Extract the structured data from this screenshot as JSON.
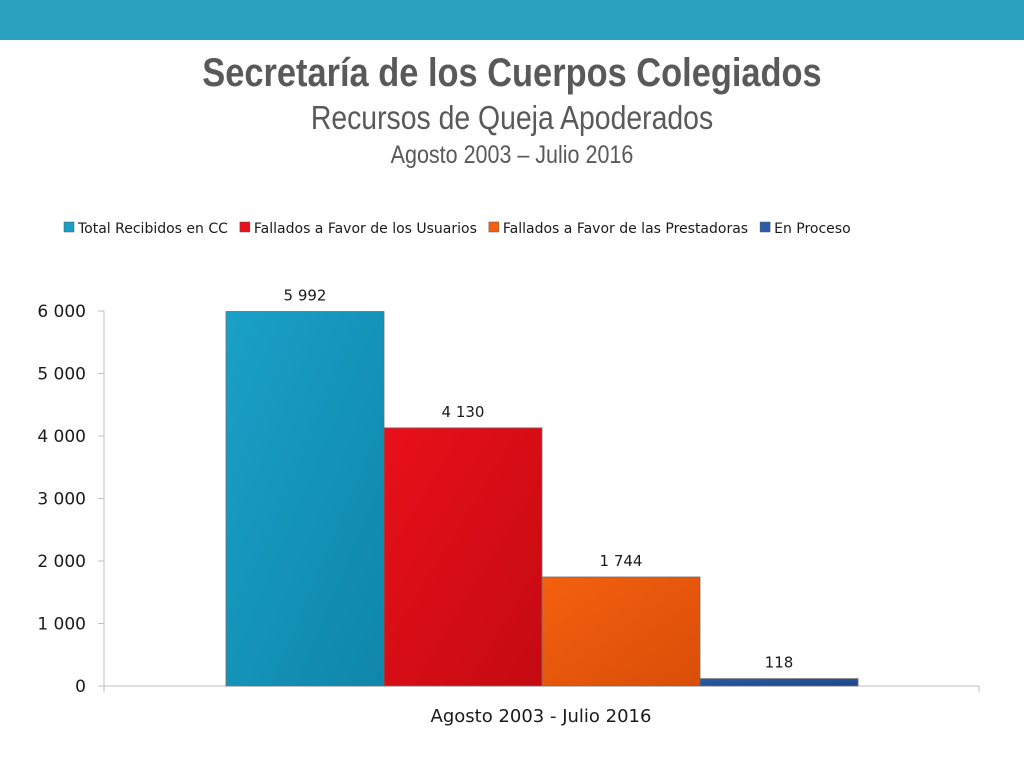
{
  "header": {
    "title": "Secretaría de los Cuerpos Colegiados",
    "subtitle": "Recursos de Queja Apoderados",
    "period": "Agosto 2003 – Julio 2016"
  },
  "colors": {
    "top_bar": "#2aa2c0",
    "title_text": "#595959"
  },
  "chart_data": {
    "type": "bar",
    "categories": [
      "Agosto 2003 - Julio 2016"
    ],
    "series": [
      {
        "name": "Total Recibidos en CC",
        "values": [
          5992
        ],
        "label": "5 992",
        "color": "#1aa0c8",
        "color_dark": "#0f86aa"
      },
      {
        "name": "Fallados a Favor de los Usuarios",
        "values": [
          4130
        ],
        "label": "4 130",
        "color": "#e8101a",
        "color_dark": "#c40a12"
      },
      {
        "name": "Fallados a Favor de las Prestadoras",
        "values": [
          1744
        ],
        "label": "1 744",
        "color": "#f4600f",
        "color_dark": "#d94e08"
      },
      {
        "name": "En Proceso",
        "values": [
          118
        ],
        "label": "118",
        "color": "#2a5ea8",
        "color_dark": "#1c4585"
      }
    ],
    "ylim": [
      0,
      6000
    ],
    "yticks": [
      0,
      1000,
      2000,
      3000,
      4000,
      5000,
      6000
    ],
    "ytick_labels": [
      "0",
      "1 000",
      "2 000",
      "3 000",
      "4 000",
      "5 000",
      "6 000"
    ],
    "legend_position": "top",
    "grid": false
  }
}
